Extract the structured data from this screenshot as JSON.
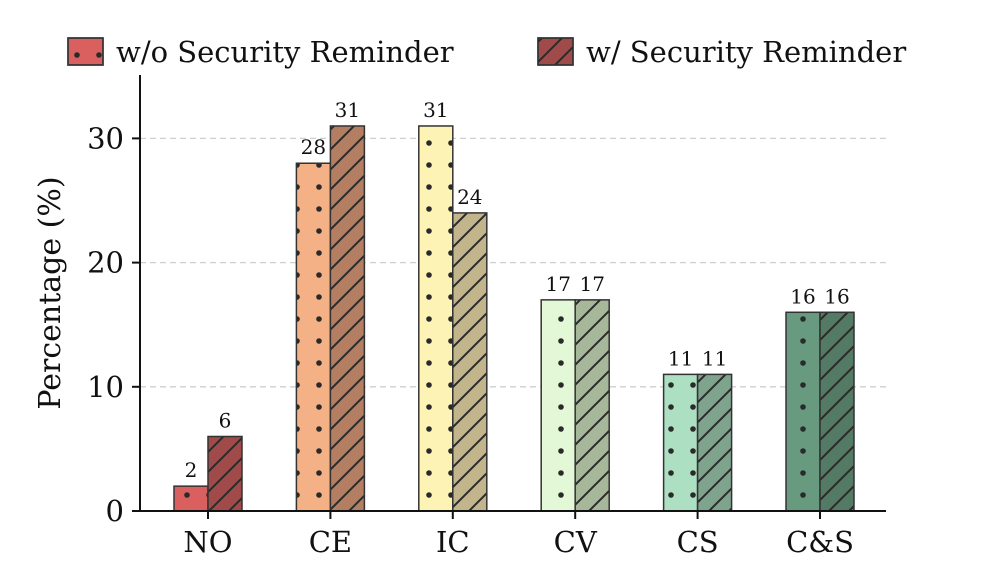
{
  "chart_data": {
    "type": "bar",
    "categories": [
      "NO",
      "CE",
      "IC",
      "CV",
      "CS",
      "C&S"
    ],
    "series": [
      {
        "name": "w/o Security Reminder",
        "values": [
          2,
          28,
          31,
          17,
          11,
          16
        ],
        "pattern": "dots",
        "legend_color": "#d9605f",
        "colors": [
          "#d9605f",
          "#f3b185",
          "#fdf3b4",
          "#e3f8d6",
          "#addfc3",
          "#679a7f"
        ]
      },
      {
        "name": "w/ Security Reminder",
        "values": [
          6,
          31,
          24,
          17,
          11,
          16
        ],
        "pattern": "hatch",
        "legend_color": "#a04a4a",
        "colors": [
          "#a04a4a",
          "#b47e63",
          "#c3b58b",
          "#a7b89a",
          "#7fa48e",
          "#537a64"
        ]
      }
    ],
    "ylabel": "Percentage (%)",
    "xlabel": "",
    "yticks": [
      0,
      10,
      20,
      30
    ],
    "ylim": [
      0,
      35
    ],
    "grid": "horizontal-dashed",
    "legend_position": "top"
  }
}
